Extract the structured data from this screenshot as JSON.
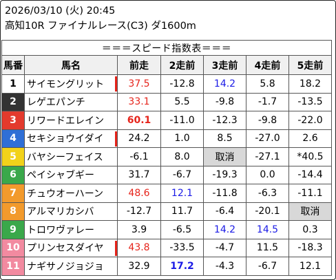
{
  "header": {
    "line1": "2026/03/10 (火) 20:45",
    "line2": "高知10R ファイナルレース(C3) ダ1600m"
  },
  "table": {
    "title": "＝＝＝スピード指数表＝＝＝",
    "columns": [
      "馬番",
      "馬名",
      "前走",
      "2走前",
      "3走前",
      "4走前",
      "5走前"
    ],
    "rows": [
      {
        "num": "1",
        "name": "サイモングリット",
        "bg": "#ffffff",
        "fg": "#000000",
        "mark": true,
        "vals": [
          "37.5",
          "-12.8",
          "14.2",
          "5.8",
          "18.2"
        ],
        "styles": [
          "red",
          "",
          "blue",
          "",
          ""
        ]
      },
      {
        "num": "2",
        "name": "レゲエパンチ",
        "bg": "#333333",
        "fg": "#ffffff",
        "mark": false,
        "vals": [
          "33.1",
          "5.5",
          "-9.8",
          "-1.7",
          "-13.5"
        ],
        "styles": [
          "red",
          "",
          "",
          "",
          ""
        ]
      },
      {
        "num": "3",
        "name": "リワードエレイン",
        "bg": "#e33a2d",
        "fg": "#ffffff",
        "mark": false,
        "vals": [
          "60.1",
          "-11.0",
          "-12.3",
          "-9.8",
          "-22.0"
        ],
        "styles": [
          "red bold",
          "",
          "",
          "",
          ""
        ]
      },
      {
        "num": "4",
        "name": "セキショウイダイ",
        "bg": "#2f6fd6",
        "fg": "#ffffff",
        "mark": true,
        "vals": [
          "24.2",
          "1.0",
          "8.5",
          "-27.0",
          "2.6"
        ],
        "styles": [
          "",
          "",
          "",
          "",
          ""
        ]
      },
      {
        "num": "5",
        "name": "バヤシーフェイス",
        "bg": "#f2d21a",
        "fg": "#ffffff",
        "mark": false,
        "vals": [
          "-6.1",
          "8.0",
          "取消",
          "-27.1",
          "*40.5"
        ],
        "styles": [
          "",
          "",
          "gray",
          "",
          ""
        ]
      },
      {
        "num": "6",
        "name": "ペイシャブギー",
        "bg": "#3aa84a",
        "fg": "#ffffff",
        "mark": false,
        "vals": [
          "31.7",
          "-6.7",
          "-19.3",
          "0.0",
          "-14.4"
        ],
        "styles": [
          "",
          "",
          "",
          "",
          ""
        ]
      },
      {
        "num": "7",
        "name": "チュウオーハーン",
        "bg": "#f29a2c",
        "fg": "#ffffff",
        "mark": false,
        "vals": [
          "48.6",
          "12.1",
          "-11.8",
          "-6.3",
          "-11.1"
        ],
        "styles": [
          "red",
          "blue",
          "",
          "",
          ""
        ]
      },
      {
        "num": "8",
        "name": "アルマリカシバ",
        "bg": "#f29a2c",
        "fg": "#ffffff",
        "mark": false,
        "vals": [
          "-12.7",
          "11.7",
          "-6.4",
          "-20.1",
          "取消"
        ],
        "styles": [
          "",
          "",
          "",
          "",
          "gray"
        ]
      },
      {
        "num": "9",
        "name": "トロワヴァレー",
        "bg": "#3aa84a",
        "fg": "#ffffff",
        "mark": false,
        "vals": [
          "3.9",
          "-6.5",
          "14.2",
          "14.5",
          "0.3"
        ],
        "styles": [
          "",
          "",
          "blue",
          "blue",
          ""
        ]
      },
      {
        "num": "10",
        "name": "プリンセスダイヤ",
        "bg": "#f28aa0",
        "fg": "#ffffff",
        "mark": true,
        "vals": [
          "43.8",
          "-33.5",
          "-4.7",
          "11.5",
          "-18.3"
        ],
        "styles": [
          "red",
          "",
          "",
          "",
          ""
        ]
      },
      {
        "num": "11",
        "name": "ナギサノジョジョ",
        "bg": "#f28aa0",
        "fg": "#ffffff",
        "mark": false,
        "vals": [
          "32.9",
          "17.2",
          "-4.3",
          "-6.7",
          "12.1"
        ],
        "styles": [
          "",
          "blue bold",
          "",
          "",
          ""
        ]
      }
    ]
  }
}
